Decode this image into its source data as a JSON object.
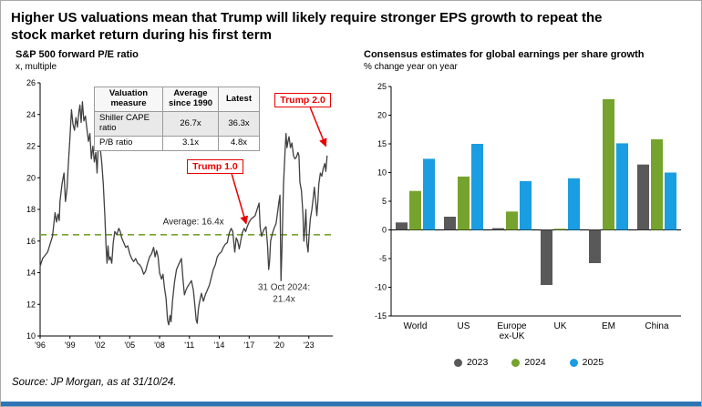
{
  "page": {
    "title_line1": "Higher US valuations mean that Trump will likely require stronger EPS growth to repeat the",
    "title_line2": "stock market return during his first term",
    "source": "Source: JP Morgan, as at 31/10/24."
  },
  "colors": {
    "red": "#e90000",
    "green": "#76a32d",
    "blue": "#1b9de2",
    "dark_gray": "#595959",
    "line": "#404040",
    "accent_bar": "#2e75b6"
  },
  "chart_data": [
    {
      "type": "line",
      "title": "S&P 500 forward P/E ratio",
      "subtitle": "x, multiple",
      "xlim": [
        1996,
        2025.4
      ],
      "ylim": [
        10,
        26
      ],
      "yticks": [
        10,
        12,
        14,
        16,
        18,
        20,
        22,
        24,
        26
      ],
      "xticks": [
        {
          "t": 1996,
          "label": "'96"
        },
        {
          "t": 1999,
          "label": "'99"
        },
        {
          "t": 2002,
          "label": "'02"
        },
        {
          "t": 2005,
          "label": "'05"
        },
        {
          "t": 2008,
          "label": "'08"
        },
        {
          "t": 2011,
          "label": "'11"
        },
        {
          "t": 2014,
          "label": "'14"
        },
        {
          "t": 2017,
          "label": "'17"
        },
        {
          "t": 2020,
          "label": "'20"
        },
        {
          "t": 2023,
          "label": "'23"
        }
      ],
      "grid": false,
      "average": {
        "value": 16.4,
        "label": "Average: 16.4x",
        "label_pos": [
          2011.4,
          17.05
        ]
      },
      "last_label": {
        "lines": [
          "31 Oct 2024:",
          "21.4x"
        ],
        "pos": [
          2020.5,
          12.9
        ]
      },
      "annotations": {
        "trump1": {
          "label": "Trump 1.0",
          "box_center": [
            2013.6,
            20.7
          ],
          "target": [
            2016.7,
            17.1
          ],
          "arrow_start_dx": 18
        },
        "trump2": {
          "label": "Trump 2.0",
          "box_center": [
            2022.4,
            24.9
          ],
          "target": [
            2024.7,
            22.0
          ],
          "arrow_start_dx": 8
        }
      },
      "table": {
        "headers": [
          "Valuation measure",
          "Average since 1990",
          "Latest"
        ],
        "rows": [
          [
            "Shiller CAPE ratio",
            "26.7x",
            "36.3x"
          ],
          [
            "P/B ratio",
            "3.1x",
            "4.8x"
          ]
        ]
      },
      "series": [
        {
          "name": "S&P 500 forward P/E ratio",
          "points": [
            [
              1996.0,
              14.4
            ],
            [
              1996.25,
              14.9
            ],
            [
              1996.5,
              15.1
            ],
            [
              1996.75,
              15.3
            ],
            [
              1997.0,
              15.8
            ],
            [
              1997.25,
              16.3
            ],
            [
              1997.5,
              17.8
            ],
            [
              1997.65,
              17.2
            ],
            [
              1997.8,
              17.7
            ],
            [
              1997.92,
              17.3
            ],
            [
              1998.0,
              18.5
            ],
            [
              1998.2,
              19.6
            ],
            [
              1998.4,
              20.3
            ],
            [
              1998.55,
              18.5
            ],
            [
              1998.7,
              19.3
            ],
            [
              1998.85,
              21.0
            ],
            [
              1999.0,
              22.6
            ],
            [
              1999.15,
              24.3
            ],
            [
              1999.3,
              23.4
            ],
            [
              1999.45,
              23.0
            ],
            [
              1999.6,
              23.8
            ],
            [
              1999.75,
              23.2
            ],
            [
              1999.9,
              24.2
            ],
            [
              2000.0,
              24.6
            ],
            [
              2000.12,
              23.5
            ],
            [
              2000.25,
              24.8
            ],
            [
              2000.4,
              23.6
            ],
            [
              2000.55,
              23.9
            ],
            [
              2000.7,
              23.1
            ],
            [
              2000.85,
              22.3
            ],
            [
              2001.0,
              22.8
            ],
            [
              2001.15,
              21.2
            ],
            [
              2001.3,
              22.0
            ],
            [
              2001.45,
              21.0
            ],
            [
              2001.6,
              21.6
            ],
            [
              2001.72,
              20.3
            ],
            [
              2001.85,
              22.2
            ],
            [
              2001.95,
              22.6
            ],
            [
              2002.05,
              21.8
            ],
            [
              2002.2,
              20.9
            ],
            [
              2002.35,
              19.6
            ],
            [
              2002.5,
              17.6
            ],
            [
              2002.62,
              15.7
            ],
            [
              2002.72,
              14.6
            ],
            [
              2002.82,
              15.7
            ],
            [
              2002.92,
              14.8
            ],
            [
              2003.05,
              15.0
            ],
            [
              2003.2,
              14.6
            ],
            [
              2003.35,
              15.9
            ],
            [
              2003.5,
              16.6
            ],
            [
              2003.7,
              16.4
            ],
            [
              2003.9,
              16.8
            ],
            [
              2004.05,
              16.6
            ],
            [
              2004.2,
              16.2
            ],
            [
              2004.4,
              15.9
            ],
            [
              2004.6,
              15.6
            ],
            [
              2004.8,
              15.7
            ],
            [
              2005.0,
              15.2
            ],
            [
              2005.2,
              14.9
            ],
            [
              2005.4,
              14.7
            ],
            [
              2005.6,
              14.9
            ],
            [
              2005.8,
              14.6
            ],
            [
              2006.0,
              14.5
            ],
            [
              2006.2,
              14.3
            ],
            [
              2006.4,
              13.9
            ],
            [
              2006.6,
              14.1
            ],
            [
              2006.8,
              14.6
            ],
            [
              2007.0,
              15.0
            ],
            [
              2007.2,
              15.2
            ],
            [
              2007.4,
              15.6
            ],
            [
              2007.55,
              15.0
            ],
            [
              2007.7,
              15.4
            ],
            [
              2007.85,
              15.0
            ],
            [
              2008.0,
              14.0
            ],
            [
              2008.2,
              13.6
            ],
            [
              2008.35,
              13.9
            ],
            [
              2008.5,
              13.0
            ],
            [
              2008.65,
              12.4
            ],
            [
              2008.8,
              11.0
            ],
            [
              2008.92,
              10.7
            ],
            [
              2009.05,
              11.3
            ],
            [
              2009.15,
              10.9
            ],
            [
              2009.3,
              12.2
            ],
            [
              2009.5,
              13.4
            ],
            [
              2009.7,
              14.2
            ],
            [
              2009.9,
              14.5
            ],
            [
              2010.05,
              14.7
            ],
            [
              2010.2,
              14.9
            ],
            [
              2010.35,
              13.6
            ],
            [
              2010.5,
              12.6
            ],
            [
              2010.65,
              12.9
            ],
            [
              2010.8,
              13.1
            ],
            [
              2011.0,
              13.3
            ],
            [
              2011.2,
              13.5
            ],
            [
              2011.4,
              12.9
            ],
            [
              2011.55,
              11.9
            ],
            [
              2011.68,
              11.0
            ],
            [
              2011.78,
              10.8
            ],
            [
              2011.9,
              11.7
            ],
            [
              2012.0,
              12.1
            ],
            [
              2012.2,
              12.7
            ],
            [
              2012.4,
              12.2
            ],
            [
              2012.6,
              12.6
            ],
            [
              2012.8,
              12.9
            ],
            [
              2013.0,
              13.2
            ],
            [
              2013.2,
              13.7
            ],
            [
              2013.4,
              14.2
            ],
            [
              2013.6,
              14.5
            ],
            [
              2013.8,
              15.0
            ],
            [
              2014.0,
              15.2
            ],
            [
              2014.2,
              15.3
            ],
            [
              2014.4,
              15.6
            ],
            [
              2014.6,
              15.8
            ],
            [
              2014.8,
              15.9
            ],
            [
              2015.0,
              16.5
            ],
            [
              2015.2,
              16.8
            ],
            [
              2015.35,
              16.6
            ],
            [
              2015.55,
              15.3
            ],
            [
              2015.7,
              16.2
            ],
            [
              2015.85,
              16.0
            ],
            [
              2016.0,
              15.5
            ],
            [
              2016.12,
              15.9
            ],
            [
              2016.3,
              16.5
            ],
            [
              2016.5,
              16.8
            ],
            [
              2016.65,
              16.6
            ],
            [
              2016.8,
              16.9
            ],
            [
              2017.0,
              17.2
            ],
            [
              2017.2,
              17.4
            ],
            [
              2017.4,
              17.5
            ],
            [
              2017.6,
              17.6
            ],
            [
              2017.8,
              18.0
            ],
            [
              2018.0,
              18.4
            ],
            [
              2018.1,
              16.9
            ],
            [
              2018.25,
              16.3
            ],
            [
              2018.4,
              16.6
            ],
            [
              2018.55,
              16.8
            ],
            [
              2018.7,
              16.9
            ],
            [
              2018.85,
              15.7
            ],
            [
              2018.96,
              14.2
            ],
            [
              2019.05,
              14.7
            ],
            [
              2019.15,
              16.0
            ],
            [
              2019.3,
              16.4
            ],
            [
              2019.5,
              16.8
            ],
            [
              2019.7,
              17.1
            ],
            [
              2019.9,
              18.0
            ],
            [
              2020.0,
              18.5
            ],
            [
              2020.1,
              18.9
            ],
            [
              2020.2,
              13.5
            ],
            [
              2020.3,
              15.6
            ],
            [
              2020.45,
              19.6
            ],
            [
              2020.6,
              21.6
            ],
            [
              2020.7,
              22.8
            ],
            [
              2020.8,
              21.9
            ],
            [
              2020.9,
              22.3
            ],
            [
              2021.0,
              22.6
            ],
            [
              2021.15,
              21.9
            ],
            [
              2021.3,
              22.2
            ],
            [
              2021.45,
              21.4
            ],
            [
              2021.6,
              21.2
            ],
            [
              2021.75,
              21.3
            ],
            [
              2021.9,
              21.6
            ],
            [
              2022.0,
              21.4
            ],
            [
              2022.1,
              19.7
            ],
            [
              2022.25,
              19.2
            ],
            [
              2022.4,
              17.8
            ],
            [
              2022.5,
              16.0
            ],
            [
              2022.6,
              16.8
            ],
            [
              2022.7,
              18.0
            ],
            [
              2022.8,
              15.9
            ],
            [
              2022.92,
              15.3
            ],
            [
              2023.05,
              16.6
            ],
            [
              2023.15,
              17.4
            ],
            [
              2023.3,
              18.0
            ],
            [
              2023.45,
              18.8
            ],
            [
              2023.55,
              19.4
            ],
            [
              2023.7,
              18.4
            ],
            [
              2023.8,
              17.6
            ],
            [
              2023.92,
              18.6
            ],
            [
              2024.0,
              19.6
            ],
            [
              2024.15,
              20.3
            ],
            [
              2024.3,
              20.1
            ],
            [
              2024.45,
              20.6
            ],
            [
              2024.6,
              20.9
            ],
            [
              2024.7,
              20.4
            ],
            [
              2024.83,
              21.4
            ]
          ]
        }
      ]
    },
    {
      "type": "bar",
      "title": "Consensus estimates for global earnings per share growth",
      "subtitle": "% change year on year",
      "categories": [
        "World",
        "US",
        "Europe ex-UK",
        "UK",
        "EM",
        "China"
      ],
      "category_lines": [
        [
          "World"
        ],
        [
          "US"
        ],
        [
          "Europe",
          "ex-UK"
        ],
        [
          "UK"
        ],
        [
          "EM"
        ],
        [
          "China"
        ]
      ],
      "ylim": [
        -15,
        25
      ],
      "yticks": [
        -15,
        -10,
        -5,
        0,
        5,
        10,
        15,
        20,
        25
      ],
      "grid": false,
      "legend_position": "bottom",
      "series": [
        {
          "name": "2023",
          "color": "#595959",
          "values": [
            1.3,
            2.3,
            0.3,
            -9.6,
            -5.8,
            11.4
          ]
        },
        {
          "name": "2024",
          "color": "#76a32d",
          "values": [
            6.8,
            9.3,
            3.2,
            0.2,
            22.8,
            15.8
          ]
        },
        {
          "name": "2025",
          "color": "#1b9de2",
          "values": [
            12.4,
            15.0,
            8.5,
            9.0,
            15.1,
            10.0
          ]
        }
      ]
    }
  ]
}
